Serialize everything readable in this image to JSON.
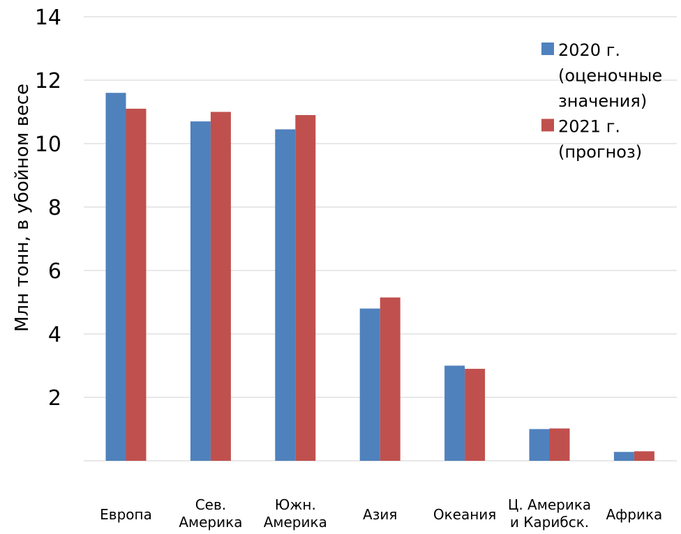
{
  "chart_data": {
    "type": "bar",
    "title": "",
    "xlabel": "",
    "ylabel": "Млн тонн, в убойном весе",
    "ylim": [
      0,
      14
    ],
    "yticks": [
      2,
      4,
      6,
      8,
      10,
      12,
      14
    ],
    "grid": true,
    "legend_position": "top-right",
    "categories": [
      [
        "Европа"
      ],
      [
        "Сев.",
        "Америка"
      ],
      [
        "Южн.",
        "Америка"
      ],
      [
        "Азия"
      ],
      [
        "Океания"
      ],
      [
        "Ц. Америка",
        "и Карибск."
      ],
      [
        "Африка"
      ]
    ],
    "series": [
      {
        "name": [
          "2020 г.",
          "(оценочные",
          "значения)"
        ],
        "color": "#4f81bd",
        "values": [
          11.6,
          10.7,
          10.45,
          4.8,
          3.0,
          1.0,
          0.28
        ]
      },
      {
        "name": [
          "2021 г.",
          "(прогноз)"
        ],
        "color": "#c0504d",
        "values": [
          11.1,
          11.0,
          10.9,
          5.15,
          2.9,
          1.02,
          0.3
        ]
      }
    ]
  }
}
